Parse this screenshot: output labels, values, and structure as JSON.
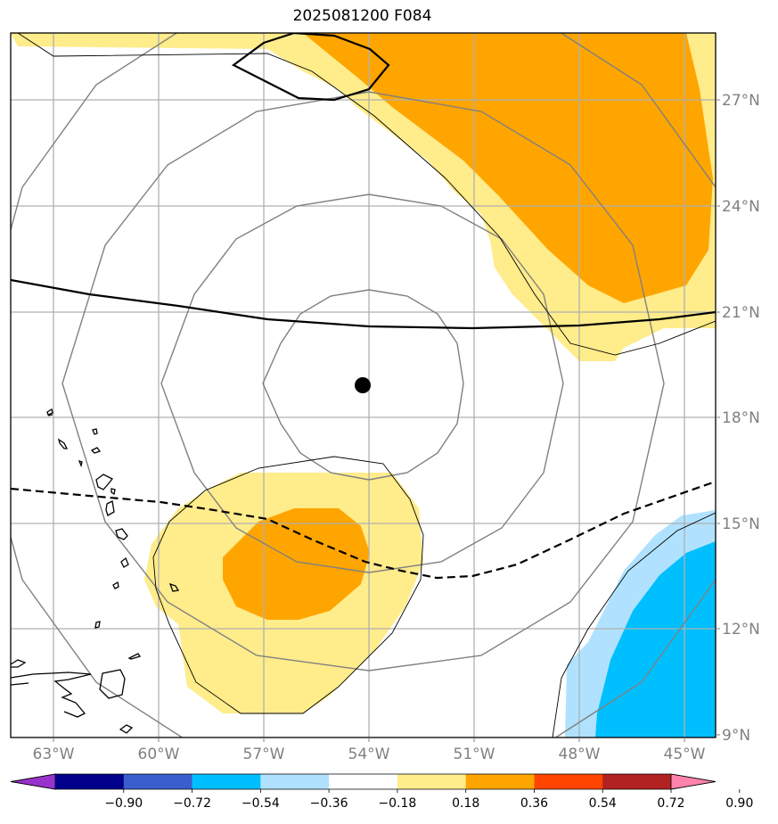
{
  "title": "2025081200 F084",
  "map": {
    "lon_range": [
      -64.2,
      -44.2
    ],
    "lat_range": [
      9.0,
      29.0
    ],
    "lon_ticks": [
      {
        "lon": -63,
        "label": "63°W"
      },
      {
        "lon": -60,
        "label": "60°W"
      },
      {
        "lon": -57,
        "label": "57°W"
      },
      {
        "lon": -54,
        "label": "54°W"
      },
      {
        "lon": -51,
        "label": "51°W"
      },
      {
        "lon": -48,
        "label": "48°W"
      },
      {
        "lon": -45,
        "label": "45°W"
      }
    ],
    "lat_ticks": [
      {
        "lat": 27,
        "label": "27°N"
      },
      {
        "lat": 24,
        "label": "24°N"
      },
      {
        "lat": 21,
        "label": "21°N"
      },
      {
        "lat": 18,
        "label": "18°N"
      },
      {
        "lat": 15,
        "label": "15°N"
      },
      {
        "lat": 12,
        "label": "12°N"
      },
      {
        "lat": 9,
        "label": "9°N"
      }
    ],
    "storm_center": {
      "lon": -54.2,
      "lat": 18.5
    }
  },
  "colorbar": {
    "colors": [
      "#9932cc",
      "#00008b",
      "#3a5fcd",
      "#00bfff",
      "#b0e2ff",
      "#ffffff",
      "#ffec8b",
      "#ffa500",
      "#ff4500",
      "#b22222",
      "#ff83ac"
    ],
    "labels": [
      "−0.90",
      "−0.72",
      "−0.54",
      "−0.36",
      "−0.18",
      "0.18",
      "0.36",
      "0.54",
      "0.72",
      "0.90"
    ]
  }
}
